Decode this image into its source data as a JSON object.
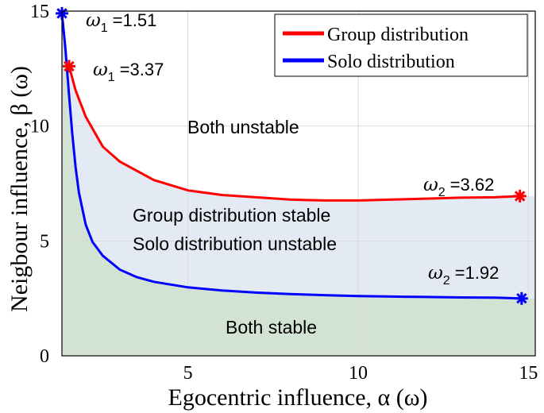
{
  "chart_data": {
    "type": "line",
    "xlabel": "Egocentric influence, α (ω)",
    "ylabel": "Neigbour influence, β (ω)",
    "xlim": [
      1.3,
      15.2
    ],
    "ylim": [
      0,
      15
    ],
    "xticks": [
      "5",
      "10",
      "15"
    ],
    "yticks": [
      "0",
      "5",
      "10",
      "15"
    ],
    "grid": true,
    "legend_position": "top-right",
    "colors": {
      "group": "#ff0000",
      "solo": "#0000ff",
      "stable_fill": "#d2e3d3",
      "band_fill": "#e4eaf4"
    },
    "series": [
      {
        "name": "Group distribution",
        "x": [
          1.51,
          1.7,
          2.0,
          2.5,
          3.0,
          4.0,
          5.0,
          6.0,
          7.0,
          8.0,
          9.0,
          10.0,
          11.0,
          12.0,
          13.0,
          14.0,
          14.75
        ],
        "y": [
          12.6,
          11.55,
          10.4,
          9.1,
          8.45,
          7.65,
          7.2,
          7.0,
          6.9,
          6.8,
          6.76,
          6.76,
          6.8,
          6.84,
          6.88,
          6.9,
          6.95
        ]
      },
      {
        "name": "Solo distribution",
        "x": [
          1.3,
          1.4,
          1.5,
          1.6,
          1.7,
          1.8,
          2.0,
          2.2,
          2.5,
          3.0,
          3.5,
          4.0,
          5.0,
          6.0,
          7.0,
          8.0,
          9.0,
          10.0,
          11.0,
          12.0,
          13.0,
          14.0,
          14.8
        ],
        "y": [
          14.9,
          13.4,
          11.5,
          9.7,
          8.2,
          7.1,
          5.7,
          4.95,
          4.35,
          3.75,
          3.42,
          3.22,
          2.98,
          2.84,
          2.75,
          2.69,
          2.64,
          2.6,
          2.58,
          2.56,
          2.54,
          2.53,
          2.5
        ]
      }
    ],
    "markers": [
      {
        "series": "Solo distribution",
        "x": 1.3,
        "y": 14.9,
        "symbol": "ω",
        "sub": "1",
        "value": "=1.51"
      },
      {
        "series": "Group distribution",
        "x": 1.51,
        "y": 12.6,
        "symbol": "ω",
        "sub": "1",
        "value": "=3.37"
      },
      {
        "series": "Group distribution",
        "x": 14.75,
        "y": 6.95,
        "symbol": "ω",
        "sub": "2",
        "value": "=3.62"
      },
      {
        "series": "Solo distribution",
        "x": 14.8,
        "y": 2.5,
        "symbol": "ω",
        "sub": "2",
        "value": "=1.92"
      }
    ],
    "regions": {
      "both_unstable": "Both unstable",
      "group_stable": "Group distribution stable",
      "solo_unstable": "Solo distribution unstable",
      "both_stable": "Both stable"
    }
  }
}
